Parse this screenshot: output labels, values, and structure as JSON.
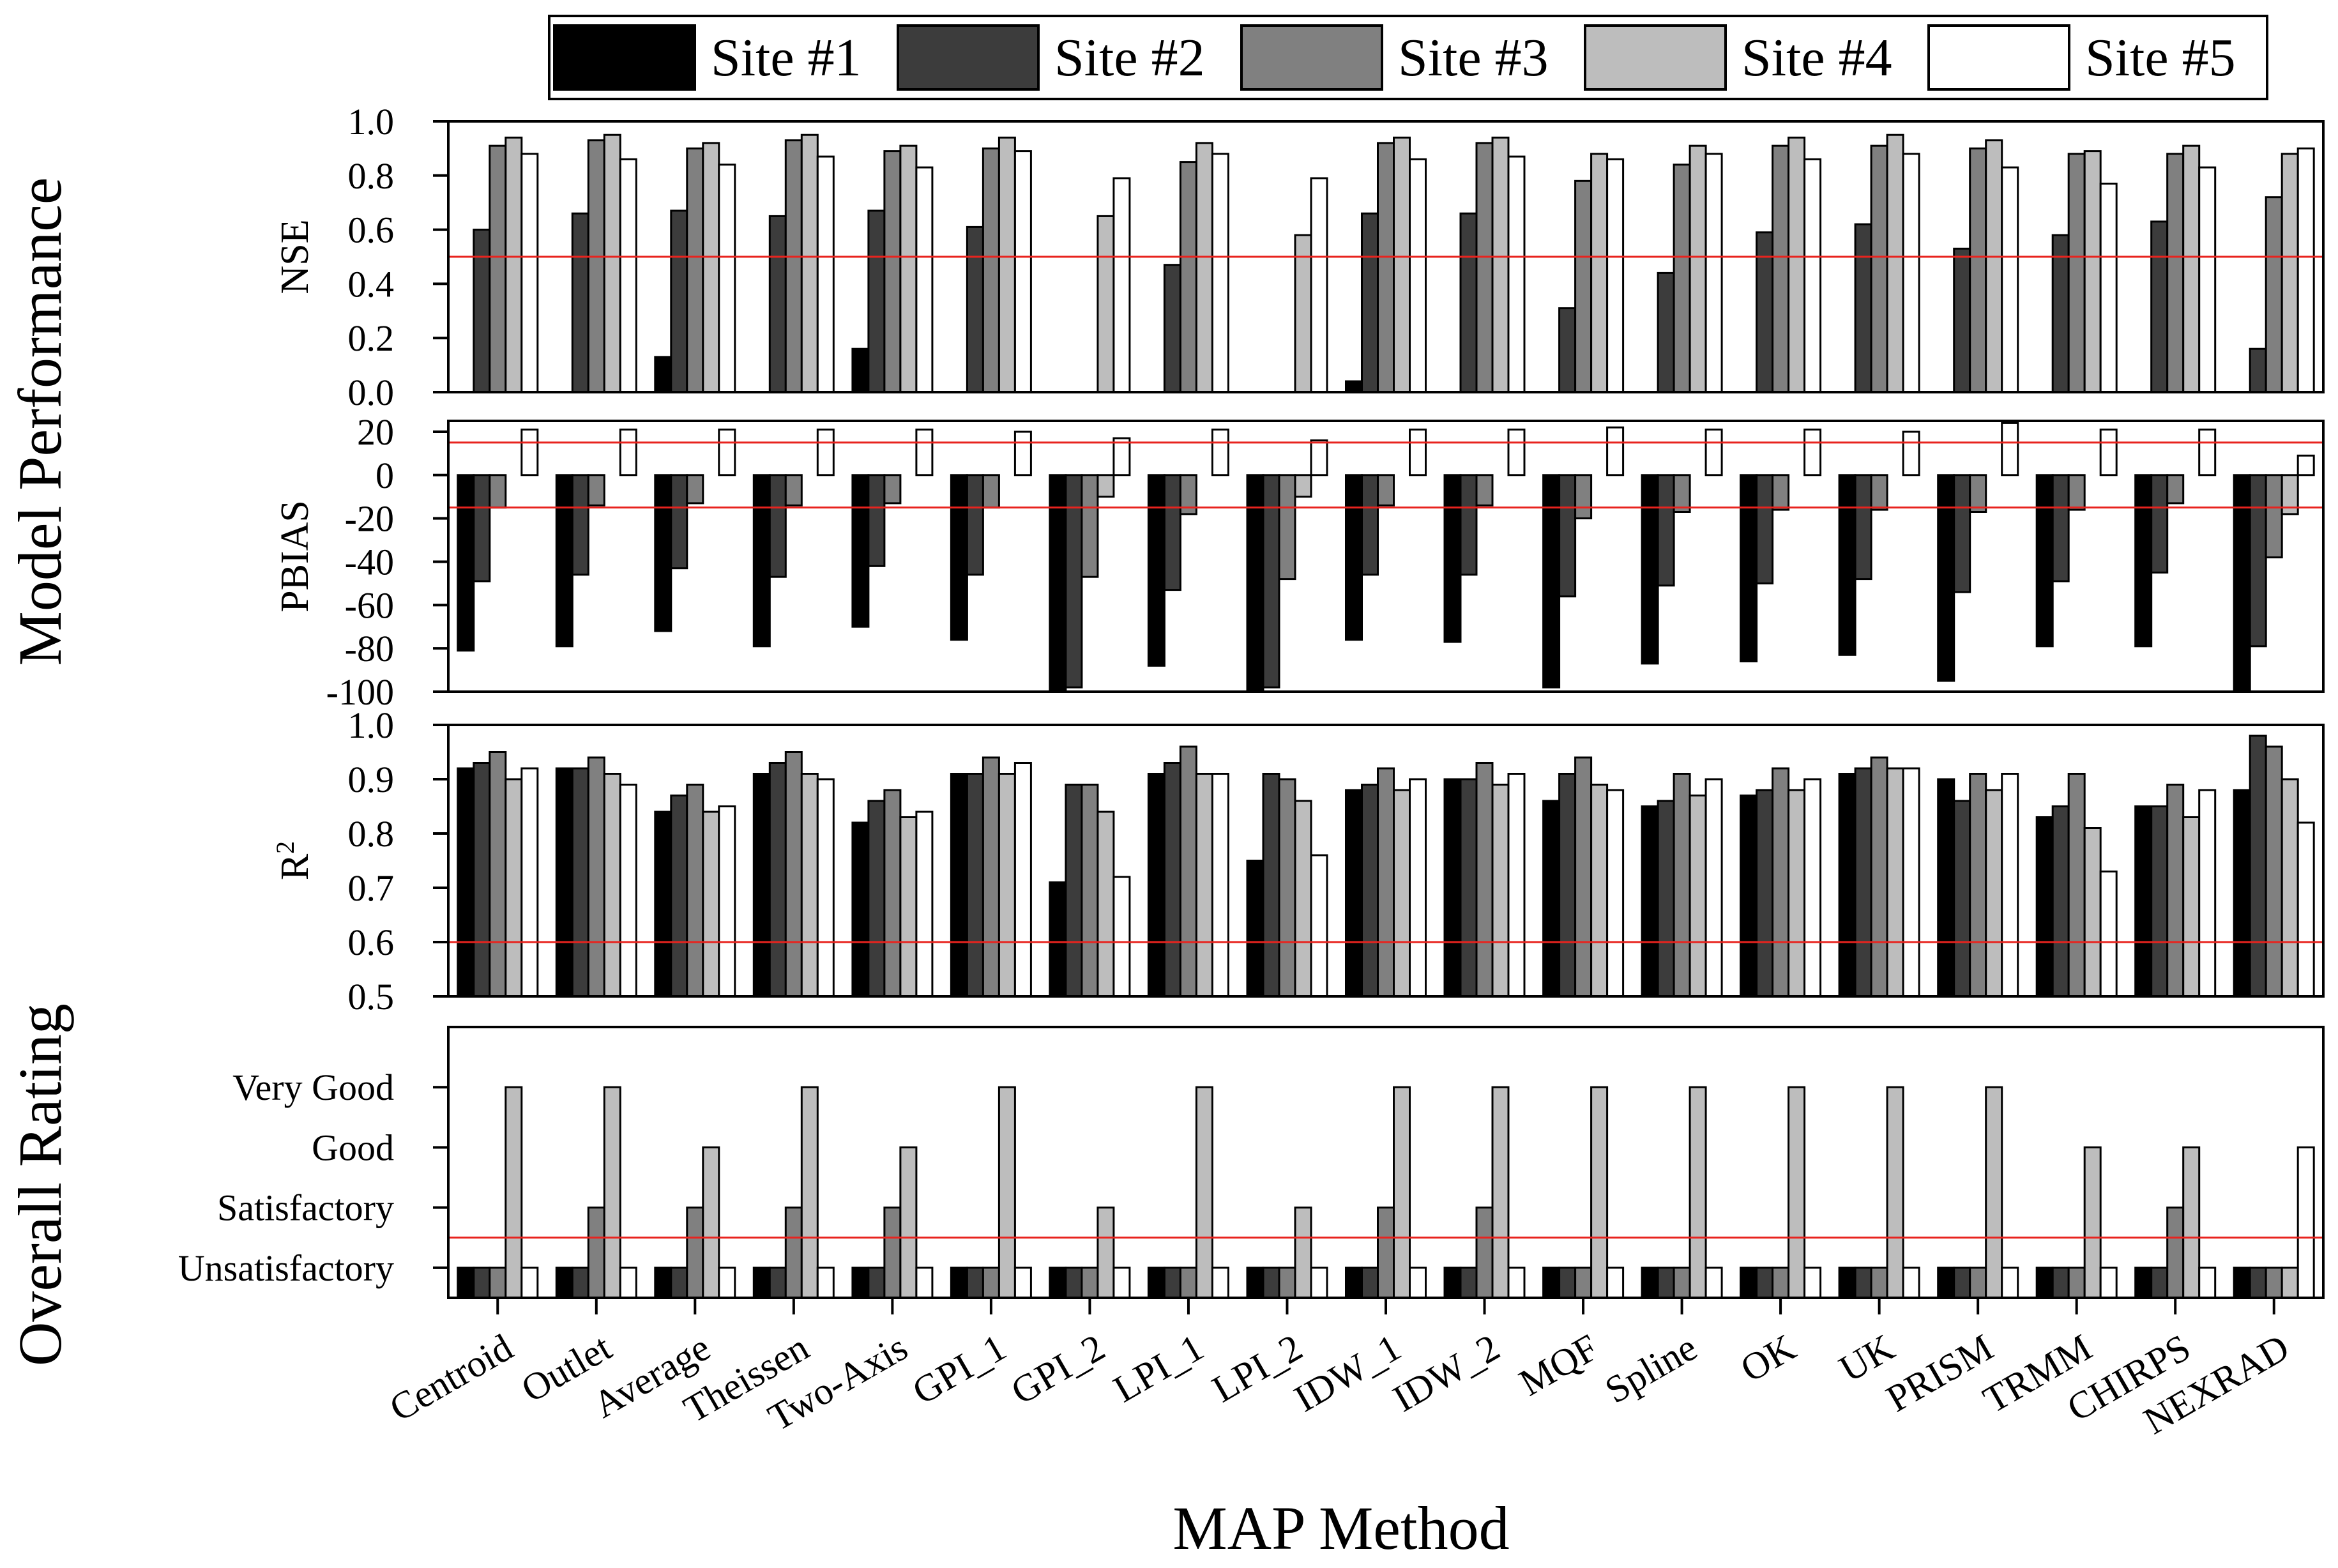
{
  "chart_data": {
    "type": "bar",
    "ylabel_group_top": "Model Performance",
    "ylabel_group_bottom": "Overall Rating",
    "xlabel": "MAP Method",
    "legend_position": "top",
    "categories": [
      "Centroid",
      "Outlet",
      "Average",
      "Theissen",
      "Two-Axis",
      "GPI_1",
      "GPI_2",
      "LPI_1",
      "LPI_2",
      "IDW_1",
      "IDW_2",
      "MQF",
      "Spline",
      "OK",
      "UK",
      "PRISM",
      "TRMM",
      "CHIRPS",
      "NEXRAD"
    ],
    "series_names": [
      "Site #1",
      "Site #2",
      "Site #3",
      "Site #4",
      "Site #5"
    ],
    "colors": {
      "series": [
        "#000000",
        "#3c3c3c",
        "#808080",
        "#bdbdbd",
        "#ffffff"
      ],
      "threshold": "#e8231e"
    },
    "panels": [
      {
        "id": "nse",
        "ylabel": "NSE",
        "ylim": [
          0,
          1
        ],
        "ticks": [
          "0.0",
          "0.2",
          "0.4",
          "0.6",
          "0.8",
          "1.0"
        ],
        "threshold_lines": [
          0.5
        ],
        "values": [
          [
            0,
            0,
            0.13,
            0,
            0.16,
            0,
            0,
            0,
            0,
            0.04,
            0,
            0,
            0,
            0,
            0,
            0,
            0,
            0,
            0
          ],
          [
            0.6,
            0.66,
            0.67,
            0.65,
            0.67,
            0.61,
            0,
            0.47,
            0,
            0.66,
            0.66,
            0.31,
            0.44,
            0.59,
            0.62,
            0.53,
            0.58,
            0.63,
            0.16
          ],
          [
            0.91,
            0.93,
            0.9,
            0.93,
            0.89,
            0.9,
            0,
            0.85,
            0,
            0.92,
            0.92,
            0.78,
            0.84,
            0.91,
            0.91,
            0.9,
            0.88,
            0.88,
            0.72
          ],
          [
            0.94,
            0.95,
            0.92,
            0.95,
            0.91,
            0.94,
            0.65,
            0.92,
            0.58,
            0.94,
            0.94,
            0.88,
            0.91,
            0.94,
            0.95,
            0.93,
            0.89,
            0.91,
            0.88
          ],
          [
            0.88,
            0.86,
            0.84,
            0.87,
            0.83,
            0.89,
            0.79,
            0.88,
            0.79,
            0.86,
            0.87,
            0.86,
            0.88,
            0.86,
            0.88,
            0.83,
            0.77,
            0.83,
            0.9
          ]
        ]
      },
      {
        "id": "pbias",
        "ylabel": "PBIAS",
        "ylim": [
          -100,
          25
        ],
        "ticks": [
          "-100",
          "-80",
          "-60",
          "-40",
          "-20",
          "0",
          "20"
        ],
        "threshold_lines": [
          15,
          -15
        ],
        "values": [
          [
            -81,
            -79,
            -72,
            -79,
            -70,
            -76,
            -100,
            -88,
            -100,
            -76,
            -77,
            -98,
            -87,
            -86,
            -83,
            -95,
            -79,
            -79,
            -100
          ],
          [
            -49,
            -46,
            -43,
            -47,
            -42,
            -46,
            -98,
            -53,
            -98,
            -46,
            -46,
            -56,
            -51,
            -50,
            -48,
            -54,
            -49,
            -45,
            -79
          ],
          [
            -15,
            -14,
            -13,
            -14,
            -13,
            -15,
            -47,
            -18,
            -48,
            -14,
            -14,
            -20,
            -17,
            -16,
            -16,
            -17,
            -16,
            -13,
            -38
          ],
          [
            0,
            0,
            0,
            0,
            0,
            0,
            -10,
            0,
            -10,
            0,
            0,
            0,
            0,
            0,
            0,
            0,
            0,
            0,
            -18
          ],
          [
            21,
            21,
            21,
            21,
            21,
            20,
            17,
            21,
            16,
            21,
            21,
            22,
            21,
            21,
            20,
            24,
            21,
            21,
            9
          ]
        ]
      },
      {
        "id": "r2",
        "ylabel_base": "R",
        "ylabel_sup": "2",
        "ylim": [
          0.5,
          1
        ],
        "ticks": [
          "0.5",
          "0.6",
          "0.7",
          "0.8",
          "0.9",
          "1.0"
        ],
        "threshold_lines": [
          0.6
        ],
        "values": [
          [
            0.92,
            0.92,
            0.84,
            0.91,
            0.82,
            0.91,
            0.71,
            0.91,
            0.75,
            0.88,
            0.9,
            0.86,
            0.85,
            0.87,
            0.91,
            0.9,
            0.83,
            0.85,
            0.88
          ],
          [
            0.93,
            0.92,
            0.87,
            0.93,
            0.86,
            0.91,
            0.89,
            0.93,
            0.91,
            0.89,
            0.9,
            0.91,
            0.86,
            0.88,
            0.92,
            0.86,
            0.85,
            0.85,
            0.98
          ],
          [
            0.95,
            0.94,
            0.89,
            0.95,
            0.88,
            0.94,
            0.89,
            0.96,
            0.9,
            0.92,
            0.93,
            0.94,
            0.91,
            0.92,
            0.94,
            0.91,
            0.91,
            0.89,
            0.96
          ],
          [
            0.9,
            0.91,
            0.84,
            0.91,
            0.83,
            0.91,
            0.84,
            0.91,
            0.86,
            0.88,
            0.89,
            0.89,
            0.87,
            0.88,
            0.92,
            0.88,
            0.81,
            0.83,
            0.9
          ],
          [
            0.92,
            0.89,
            0.85,
            0.9,
            0.84,
            0.93,
            0.72,
            0.91,
            0.76,
            0.9,
            0.91,
            0.88,
            0.9,
            0.9,
            0.92,
            0.91,
            0.73,
            0.88,
            0.82
          ]
        ]
      },
      {
        "id": "rating",
        "ylabel": "",
        "ylim": [
          0.5,
          5
        ],
        "rating_labels": [
          "Unsatisfactory",
          "Satisfactory",
          "Good",
          "Very Good"
        ],
        "threshold_lines": [
          1.5
        ],
        "values": [
          [
            1,
            1,
            1,
            1,
            1,
            1,
            1,
            1,
            1,
            1,
            1,
            1,
            1,
            1,
            1,
            1,
            1,
            1,
            1
          ],
          [
            1,
            1,
            1,
            1,
            1,
            1,
            1,
            1,
            1,
            1,
            1,
            1,
            1,
            1,
            1,
            1,
            1,
            1,
            1
          ],
          [
            1,
            2,
            2,
            2,
            2,
            1,
            1,
            1,
            1,
            2,
            2,
            1,
            1,
            1,
            1,
            1,
            1,
            2,
            1
          ],
          [
            4,
            4,
            3,
            4,
            3,
            4,
            2,
            4,
            2,
            4,
            4,
            4,
            4,
            4,
            4,
            4,
            3,
            3,
            1
          ],
          [
            1,
            1,
            1,
            1,
            1,
            1,
            1,
            1,
            1,
            1,
            1,
            1,
            1,
            1,
            1,
            1,
            1,
            1,
            3
          ]
        ]
      }
    ]
  }
}
